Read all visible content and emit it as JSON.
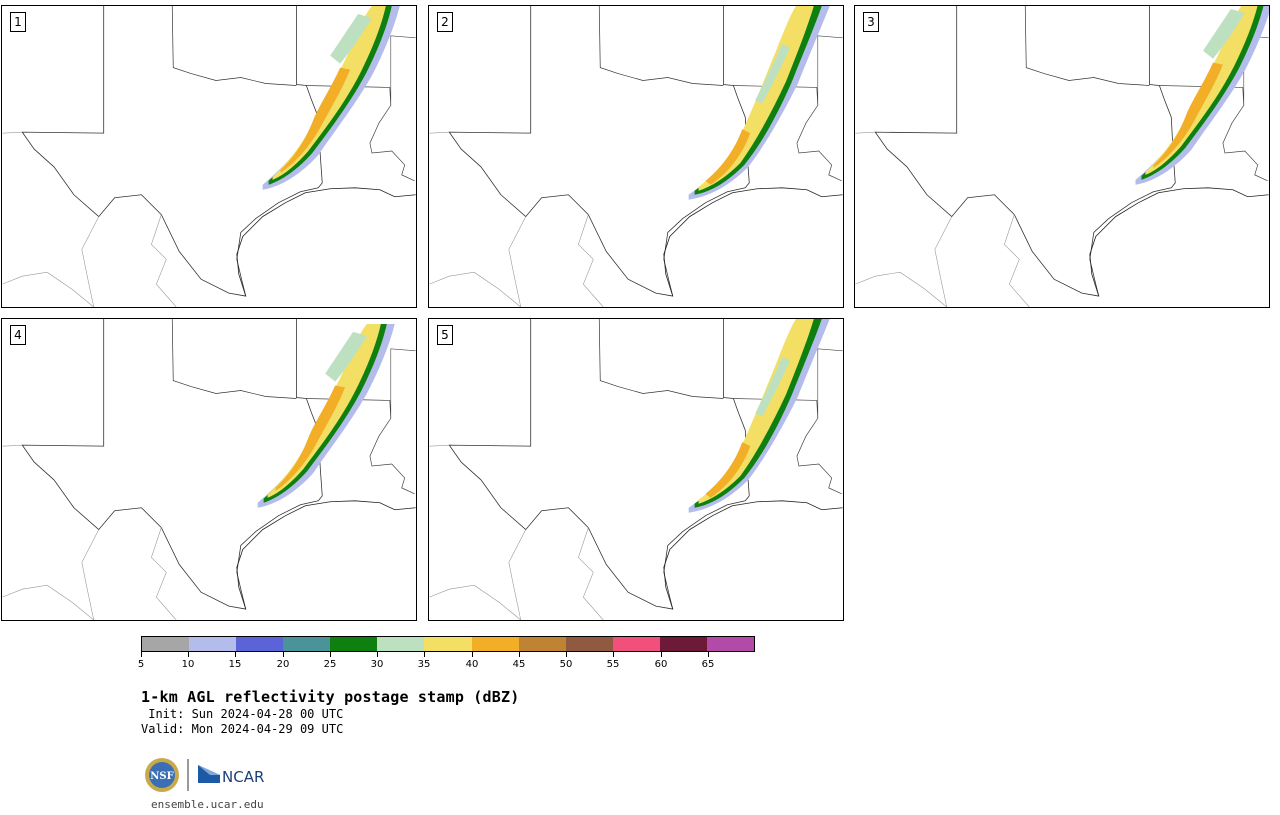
{
  "panels": [
    {
      "label": "1"
    },
    {
      "label": "2"
    },
    {
      "label": "3"
    },
    {
      "label": "4"
    },
    {
      "label": "5"
    }
  ],
  "legend": {
    "colors": [
      "#a6a6a6",
      "#b4bcec",
      "#5b63d8",
      "#4a9499",
      "#0e8010",
      "#bde0c1",
      "#f2df64",
      "#f1ae26",
      "#bf8433",
      "#905a40",
      "#f14f7c",
      "#6d1a38",
      "#b24aa8"
    ],
    "ticks": [
      "5",
      "10",
      "15",
      "20",
      "25",
      "30",
      "35",
      "40",
      "45",
      "50",
      "55",
      "60",
      "65"
    ]
  },
  "title": "1-km AGL reflectivity postage stamp (dBZ)",
  "init": " Init: Sun 2024-04-28 00 UTC",
  "valid": "Valid: Mon 2024-04-29 09 UTC",
  "logo": {
    "nsf": "NSF",
    "ncar": "NCAR"
  },
  "site": "ensemble.ucar.edu"
}
